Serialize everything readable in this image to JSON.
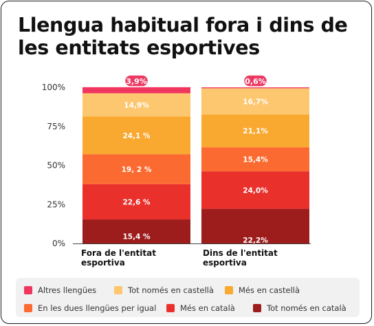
{
  "title": "Llengua habitual fora i dins de les entitats esportives",
  "colors": {
    "altres": "#f0365e",
    "tot_castella": "#fdc76f",
    "mes_castella": "#f9a830",
    "dues": "#fb6a30",
    "mes_catala": "#e9302b",
    "tot_catala": "#9d1c1c",
    "badge": "#ec3a63"
  },
  "chart_data": {
    "type": "bar",
    "stacked": true,
    "normalized": true,
    "title": "Llengua habitual fora i dins de les entitats esportives",
    "categories": [
      "Fora de l'entitat esportiva",
      "Dins de l'entitat esportiva"
    ],
    "category_lines": [
      [
        "Fora de l'entitat",
        "esportiva"
      ],
      [
        "Dins de l'entitat",
        "esportiva"
      ]
    ],
    "series": [
      {
        "name": "Tot només en català",
        "key": "tot_catala",
        "values": [
          15.4,
          22.2
        ],
        "labels": [
          "15,4 %",
          "22,2%"
        ]
      },
      {
        "name": "Més en català",
        "key": "mes_catala",
        "values": [
          22.6,
          24.0
        ],
        "labels": [
          "22,6 %",
          "24,0%"
        ]
      },
      {
        "name": "En les dues llengües per igual",
        "key": "dues",
        "values": [
          19.2,
          15.4
        ],
        "labels": [
          "19, 2 %",
          "15,4%"
        ]
      },
      {
        "name": "Més en castellà",
        "key": "mes_castella",
        "values": [
          24.1,
          21.1
        ],
        "labels": [
          "24,1 %",
          "21,1%"
        ]
      },
      {
        "name": "Tot només en castellà",
        "key": "tot_castella",
        "values": [
          14.9,
          16.7
        ],
        "labels": [
          "14,9%",
          "16,7%"
        ]
      },
      {
        "name": "Altres llengües",
        "key": "altres",
        "values": [
          3.9,
          0.6
        ],
        "labels": [
          "3,9%",
          "0,6%"
        ]
      }
    ],
    "yticks": [
      "0%",
      "25%",
      "50%",
      "75%",
      "100%"
    ],
    "ylim": [
      0,
      100
    ],
    "legend_position": "bottom",
    "legend_order": [
      "altres",
      "tot_castella",
      "mes_castella",
      "dues",
      "mes_catala",
      "tot_catala"
    ]
  }
}
